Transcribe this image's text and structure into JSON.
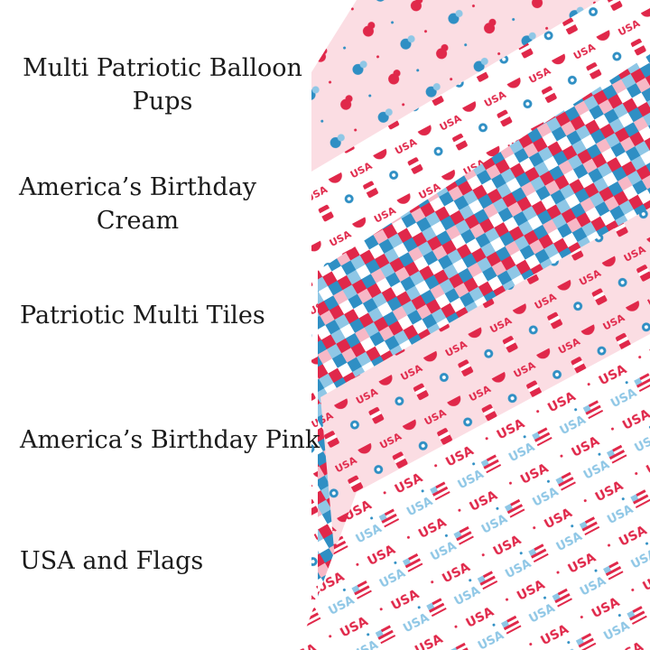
{
  "products": [
    {
      "lines": [
        "Multi Patriotic Balloon",
        "Pups"
      ],
      "background": "#fbdde3"
    },
    {
      "lines": [
        "America’s Birthday",
        "Cream"
      ],
      "background": "#ffffff"
    },
    {
      "lines": [
        "Patriotic Multi Tiles"
      ],
      "background": "#ffffff"
    },
    {
      "lines": [
        "America’s Birthday Pink"
      ],
      "background": "#fbdde3"
    },
    {
      "lines": [
        "USA and Flags"
      ],
      "background": "#ffffff"
    }
  ],
  "colors": {
    "red": "#e0284a",
    "blue": "#2f8fc4",
    "light_blue": "#8fc7e6",
    "pink": "#f7b8c6"
  }
}
